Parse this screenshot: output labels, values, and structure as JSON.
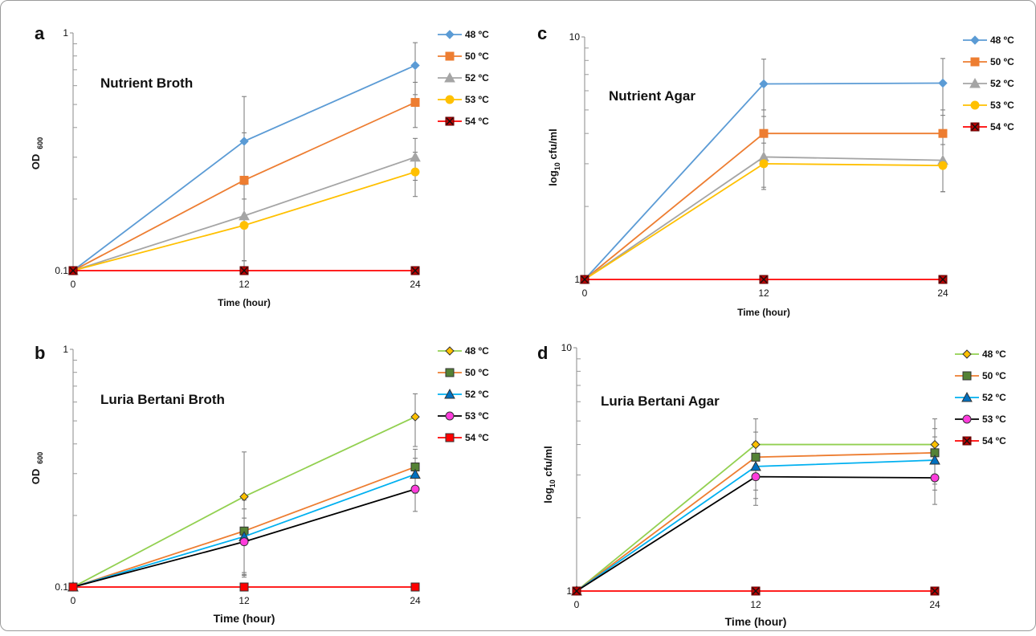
{
  "chart_data": [
    {
      "panel": "a",
      "type": "line",
      "title": "Nutrient Broth",
      "xlabel": "Time (hour)",
      "ylabel": "OD 600",
      "ylabel_main": "OD",
      "ylabel_sub": "600",
      "yscale": "log",
      "x": [
        0,
        12,
        24
      ],
      "xticks": [
        "0",
        "12",
        "24"
      ],
      "yticks": [
        {
          "v": 0.1,
          "label": "0.1"
        },
        {
          "v": 1,
          "label": "1"
        }
      ],
      "ylim": [
        0.1,
        1
      ],
      "legend_position": "top-right",
      "series": [
        {
          "name": "48 ºC",
          "color": "#5b9bd5",
          "marker": "diamond",
          "values": [
            0.1,
            0.35,
            0.73
          ],
          "err": [
            0,
            0.19,
            0.18
          ]
        },
        {
          "name": "50 ºC",
          "color": "#ed7d31",
          "marker": "square",
          "values": [
            0.1,
            0.24,
            0.51
          ],
          "err": [
            0,
            0.14,
            0.11
          ]
        },
        {
          "name": "52 ºC",
          "color": "#a5a5a5",
          "marker": "triangle",
          "values": [
            0.1,
            0.17,
            0.3
          ],
          "err": [
            0,
            0.06,
            0.06
          ]
        },
        {
          "name": "53 ºC",
          "color": "#ffc000",
          "marker": "circle",
          "values": [
            0.1,
            0.155,
            0.26
          ],
          "err": [
            0,
            0.045,
            0.055
          ]
        },
        {
          "name": "54 ºC",
          "color": "#c00000",
          "line_color": "#ff0000",
          "marker": "x-square",
          "values": [
            0.1,
            0.1,
            0.1
          ],
          "err": [
            0,
            0,
            0
          ]
        }
      ]
    },
    {
      "panel": "b",
      "type": "line",
      "title": "Luria Bertani Broth",
      "xlabel": "Time (hour)",
      "ylabel": "OD 600",
      "ylabel_main": "OD",
      "ylabel_sub": "600",
      "yscale": "log",
      "x": [
        0,
        12,
        24
      ],
      "xticks": [
        "0",
        "12",
        "24"
      ],
      "yticks": [
        {
          "v": 0.1,
          "label": "0.1"
        },
        {
          "v": 1,
          "label": "1"
        }
      ],
      "ylim": [
        0.1,
        1
      ],
      "legend_position": "top-right",
      "series": [
        {
          "name": "48 ºC",
          "color": "#92d050",
          "fill": "#ffc000",
          "marker": "diamond",
          "values": [
            0.1,
            0.24,
            0.52
          ],
          "err": [
            0,
            0.13,
            0.13
          ]
        },
        {
          "name": "50 ºC",
          "color": "#ed7d31",
          "fill": "#548235",
          "marker": "square",
          "values": [
            0.1,
            0.172,
            0.32
          ],
          "err": [
            0,
            0.06,
            0.06
          ]
        },
        {
          "name": "52 ºC",
          "color": "#00b0f0",
          "fill": "#0070c0",
          "marker": "triangle",
          "values": [
            0.1,
            0.163,
            0.298
          ],
          "err": [
            0,
            0.05,
            0.05
          ]
        },
        {
          "name": "53 ºC",
          "color": "#000000",
          "fill": "#ff3cdc",
          "marker": "circle",
          "values": [
            0.1,
            0.155,
            0.258
          ],
          "err": [
            0,
            0.04,
            0.05
          ]
        },
        {
          "name": "54 ºC",
          "color": "#ff0000",
          "fill": "#ff0000",
          "marker": "square",
          "values": [
            0.1,
            0.1,
            0.1
          ],
          "err": [
            0,
            0,
            0
          ]
        }
      ]
    },
    {
      "panel": "c",
      "type": "line",
      "title": "Nutrient Agar",
      "xlabel": "Time (hour)",
      "ylabel": "log10 cfu/ml",
      "ylabel_main": "log",
      "ylabel_sub": "10",
      "ylabel_rest": " cfu/ml",
      "yscale": "log",
      "x": [
        0,
        12,
        24
      ],
      "xticks": [
        "0",
        "12",
        "24"
      ],
      "yticks": [
        {
          "v": 1,
          "label": "1"
        },
        {
          "v": 10,
          "label": "10"
        }
      ],
      "ylim": [
        1,
        10
      ],
      "legend_position": "top-right",
      "series": [
        {
          "name": "48 ºC",
          "color": "#5b9bd5",
          "marker": "diamond",
          "values": [
            1,
            6.4,
            6.45
          ],
          "err": [
            0,
            1.7,
            1.7
          ]
        },
        {
          "name": "50 ºC",
          "color": "#ed7d31",
          "marker": "square",
          "values": [
            1,
            4.0,
            4.0
          ],
          "err": [
            0,
            1.0,
            1.0
          ]
        },
        {
          "name": "52 ºC",
          "color": "#a5a5a5",
          "marker": "triangle",
          "values": [
            1,
            3.2,
            3.1
          ],
          "err": [
            0,
            0.8,
            0.8
          ]
        },
        {
          "name": "53 ºC",
          "color": "#ffc000",
          "marker": "circle",
          "values": [
            1,
            3.0,
            2.95
          ],
          "err": [
            0,
            0.65,
            0.65
          ]
        },
        {
          "name": "54 ºC",
          "color": "#c00000",
          "line_color": "#ff0000",
          "marker": "x-square",
          "values": [
            1,
            1,
            1
          ],
          "err": [
            0,
            0,
            0
          ]
        }
      ]
    },
    {
      "panel": "d",
      "type": "line",
      "title": "Luria Bertani Agar",
      "xlabel": "Time (hour)",
      "ylabel": "log10 cfu/ml",
      "ylabel_main": "log",
      "ylabel_sub": "10",
      "ylabel_rest": " cfu/ml",
      "yscale": "log",
      "x": [
        0,
        12,
        24
      ],
      "xticks": [
        "0",
        "12",
        "24"
      ],
      "yticks": [
        {
          "v": 1,
          "label": "1"
        },
        {
          "v": 10,
          "label": "10"
        }
      ],
      "ylim": [
        1,
        10
      ],
      "legend_position": "top-right",
      "series": [
        {
          "name": "48 ºC",
          "color": "#92d050",
          "fill": "#ffc000",
          "marker": "diamond",
          "values": [
            1,
            4.0,
            4.0
          ],
          "err": [
            0,
            1.1,
            1.1
          ]
        },
        {
          "name": "50 ºC",
          "color": "#ed7d31",
          "fill": "#548235",
          "marker": "square",
          "values": [
            1,
            3.55,
            3.7
          ],
          "err": [
            0,
            0.95,
            0.95
          ]
        },
        {
          "name": "52 ºC",
          "color": "#00b0f0",
          "fill": "#0070c0",
          "marker": "triangle",
          "values": [
            1,
            3.25,
            3.45
          ],
          "err": [
            0,
            0.85,
            0.85
          ]
        },
        {
          "name": "53 ºC",
          "color": "#000000",
          "fill": "#ff3cdc",
          "marker": "circle",
          "values": [
            1,
            2.95,
            2.92
          ],
          "err": [
            0,
            0.7,
            0.65
          ]
        },
        {
          "name": "54 ºC",
          "color": "#ff0000",
          "fill": "#c00000",
          "marker": "x-square",
          "values": [
            1,
            1,
            1
          ],
          "err": [
            0,
            0,
            0
          ]
        }
      ]
    }
  ]
}
